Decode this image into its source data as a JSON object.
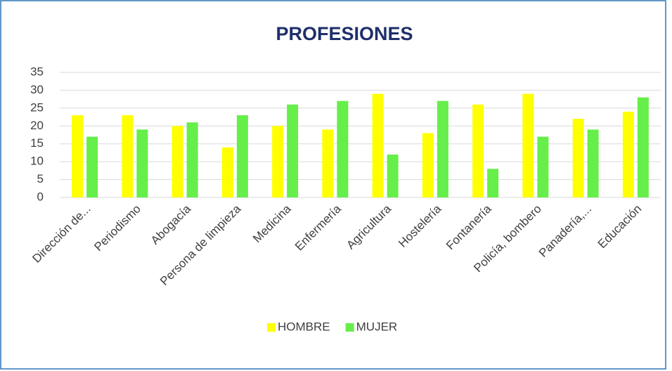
{
  "chart_data": {
    "type": "bar",
    "title": "PROFESIONES",
    "categories": [
      "Dirección de...",
      "Periodismo",
      "Abogacía",
      "Persona de limpieza",
      "Medicina",
      "Enfermería",
      "Agricultura",
      "Hostelería",
      "Fontanería",
      "Policía, bombero",
      "Panadería,...",
      "Educación"
    ],
    "series": [
      {
        "name": "HOMBRE",
        "color": "#ffff00",
        "values": [
          23,
          23,
          20,
          14,
          20,
          19,
          29,
          18,
          26,
          29,
          22,
          24
        ]
      },
      {
        "name": "MUJER",
        "color": "#66ee4a",
        "values": [
          17,
          19,
          21,
          23,
          26,
          27,
          12,
          27,
          8,
          17,
          19,
          28
        ]
      }
    ],
    "ylim": [
      0,
      35
    ],
    "yticks": [
      0,
      5,
      10,
      15,
      20,
      25,
      30,
      35
    ],
    "grid": true,
    "legend": "bottom"
  }
}
